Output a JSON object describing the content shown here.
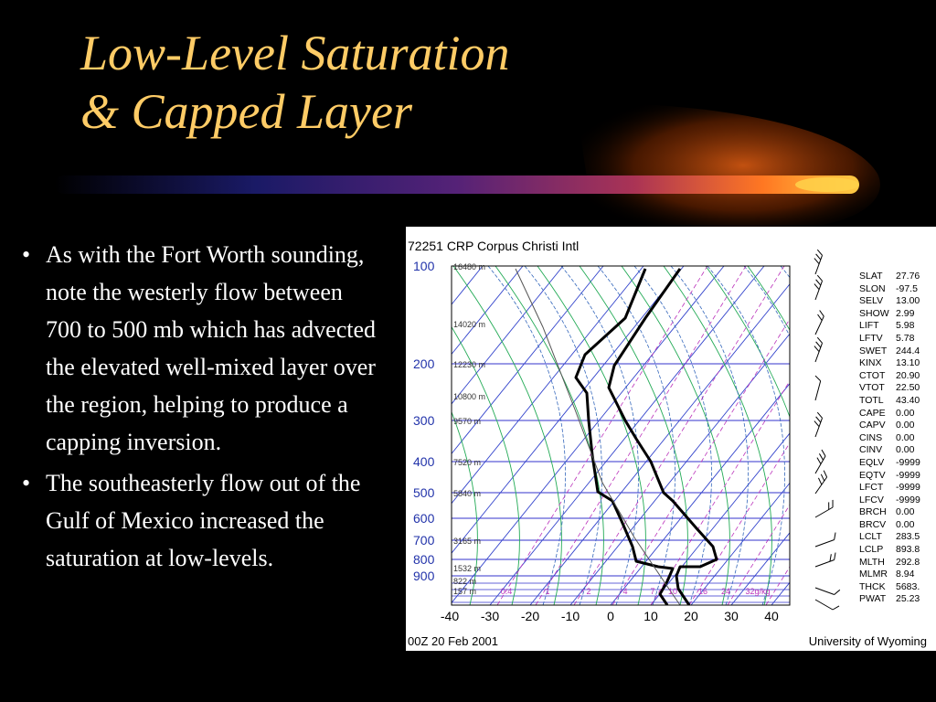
{
  "title": {
    "line1": "Low-Level Saturation",
    "line2": "& Capped Layer"
  },
  "colors": {
    "title": "#FFCC66",
    "background": "#000000",
    "text": "#FFFFFF"
  },
  "bullets": [
    "As with the Fort Worth sounding, note the westerly flow between 700 to 500 mb which has advected the elevated well-mixed layer over the region, helping to produce a capping inversion.",
    "The southeasterly flow out of the Gulf of Mexico increased the saturation at low-levels."
  ],
  "sounding": {
    "station": "72251 CRP Corpus Christi Intl",
    "date": "00Z 20 Feb 2001",
    "credit": "University of Wyoming",
    "pressure_labels": [
      "100",
      "200",
      "300",
      "400",
      "500",
      "600",
      "700",
      "800",
      "900"
    ],
    "height_labels": [
      "16480 m",
      "14020 m",
      "12230 m",
      "10800 m",
      "9570 m",
      "7520 m",
      "5840 m",
      "3165 m",
      "1532 m",
      "822 m",
      "157 m"
    ],
    "temp_labels": [
      "-40",
      "-30",
      "-20",
      "-10",
      "0",
      "10",
      "20",
      "30",
      "40"
    ],
    "mixing_labels": [
      "0.4",
      "1",
      "2",
      "4",
      "7",
      "10",
      "16",
      "24",
      "32g/kg"
    ],
    "indices": [
      {
        "name": "SLAT",
        "value": "27.76"
      },
      {
        "name": "SLON",
        "value": "-97.5"
      },
      {
        "name": "SELV",
        "value": "13.00"
      },
      {
        "name": "SHOW",
        "value": "2.99"
      },
      {
        "name": "LIFT",
        "value": "5.98"
      },
      {
        "name": "LFTV",
        "value": "5.78"
      },
      {
        "name": "SWET",
        "value": "244.4"
      },
      {
        "name": "KINX",
        "value": "13.10"
      },
      {
        "name": "CTOT",
        "value": "20.90"
      },
      {
        "name": "VTOT",
        "value": "22.50"
      },
      {
        "name": "TOTL",
        "value": "43.40"
      },
      {
        "name": "CAPE",
        "value": "0.00"
      },
      {
        "name": "CAPV",
        "value": "0.00"
      },
      {
        "name": "CINS",
        "value": "0.00"
      },
      {
        "name": "CINV",
        "value": "0.00"
      },
      {
        "name": "EQLV",
        "value": "-9999"
      },
      {
        "name": "EQTV",
        "value": "-9999"
      },
      {
        "name": "LFCT",
        "value": "-9999"
      },
      {
        "name": "LFCV",
        "value": "-9999"
      },
      {
        "name": "BRCH",
        "value": "0.00"
      },
      {
        "name": "BRCV",
        "value": "0.00"
      },
      {
        "name": "LCLT",
        "value": "283.5"
      },
      {
        "name": "LCLP",
        "value": "893.8"
      },
      {
        "name": "MLTH",
        "value": "292.8"
      },
      {
        "name": "MLMR",
        "value": "8.94"
      },
      {
        "name": "THCK",
        "value": "5683."
      },
      {
        "name": "PWAT",
        "value": "25.23"
      }
    ]
  }
}
